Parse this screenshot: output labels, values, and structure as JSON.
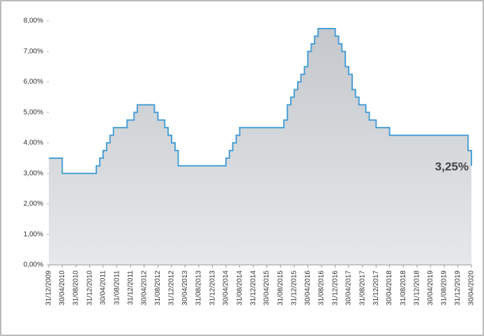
{
  "chart_data": {
    "type": "step-area",
    "x": [
      "31/12/2009",
      "30/04/2010",
      "28/02/2011",
      "31/03/2011",
      "30/04/2011",
      "31/05/2011",
      "30/06/2011",
      "31/07/2011",
      "30/11/2011",
      "31/01/2012",
      "29/02/2012",
      "31/07/2012",
      "31/08/2012",
      "31/10/2012",
      "30/11/2012",
      "31/12/2012",
      "31/01/2013",
      "28/02/2013",
      "30/04/2014",
      "31/05/2014",
      "30/06/2014",
      "31/07/2014",
      "31/08/2014",
      "30/09/2015",
      "31/10/2015",
      "30/11/2015",
      "31/12/2015",
      "31/01/2016",
      "29/02/2016",
      "31/03/2016",
      "30/04/2016",
      "31/05/2016",
      "30/06/2016",
      "31/07/2016",
      "31/12/2016",
      "31/01/2017",
      "28/02/2017",
      "31/03/2017",
      "30/04/2017",
      "31/05/2017",
      "30/06/2017",
      "31/07/2017",
      "30/09/2017",
      "31/10/2017",
      "31/12/2017",
      "30/04/2018",
      "31/03/2020",
      "30/04/2020"
    ],
    "values": [
      3.5,
      3.0,
      3.25,
      3.5,
      3.75,
      4.0,
      4.25,
      4.5,
      4.75,
      5.0,
      5.25,
      5.0,
      4.75,
      4.5,
      4.25,
      4.0,
      3.75,
      3.25,
      3.5,
      3.75,
      4.0,
      4.25,
      4.5,
      4.75,
      5.25,
      5.5,
      5.75,
      6.0,
      6.25,
      6.5,
      7.0,
      7.25,
      7.5,
      7.75,
      7.5,
      7.25,
      7.0,
      6.5,
      6.25,
      5.75,
      5.5,
      5.25,
      5.0,
      4.75,
      4.5,
      4.25,
      3.75,
      3.25
    ],
    "value_labels": [
      null,
      null,
      null,
      null,
      null,
      null,
      null,
      null,
      null,
      null,
      null,
      null,
      null,
      null,
      null,
      null,
      null,
      null,
      null,
      null,
      null,
      null,
      null,
      null,
      null,
      null,
      null,
      null,
      null,
      null,
      null,
      null,
      null,
      null,
      null,
      null,
      null,
      null,
      null,
      null,
      null,
      null,
      null,
      null,
      null,
      null,
      null,
      "3,25%"
    ],
    "color": "#4a9fd6",
    "xlim": [
      "31/12/2009",
      "30/04/2020"
    ],
    "xticks": [
      "31/12/2009",
      "30/04/2010",
      "31/08/2010",
      "31/12/2010",
      "30/04/2011",
      "31/08/2011",
      "31/12/2011",
      "30/04/2012",
      "31/08/2012",
      "31/12/2012",
      "30/04/2013",
      "31/08/2013",
      "31/12/2013",
      "30/04/2014",
      "31/08/2014",
      "31/12/2014",
      "30/04/2015",
      "31/08/2015",
      "31/12/2015",
      "30/04/2016",
      "31/08/2016",
      "31/12/2016",
      "30/04/2017",
      "31/08/2017",
      "31/12/2017",
      "30/04/2018",
      "31/08/2018",
      "31/12/2018",
      "30/04/2019",
      "31/08/2019",
      "31/12/2019",
      "30/04/2020"
    ],
    "ylim": [
      0,
      8
    ],
    "yticks": [
      {
        "value": 0,
        "label": "0,00%"
      },
      {
        "value": 1,
        "label": "1,00%"
      },
      {
        "value": 2,
        "label": "2,00%"
      },
      {
        "value": 3,
        "label": "3,00%"
      },
      {
        "value": 4,
        "label": "4,00%"
      },
      {
        "value": 5,
        "label": "5,00%"
      },
      {
        "value": 6,
        "label": "6,00%"
      },
      {
        "value": 7,
        "label": "7,00%"
      },
      {
        "value": 8,
        "label": "8,00%"
      }
    ]
  }
}
